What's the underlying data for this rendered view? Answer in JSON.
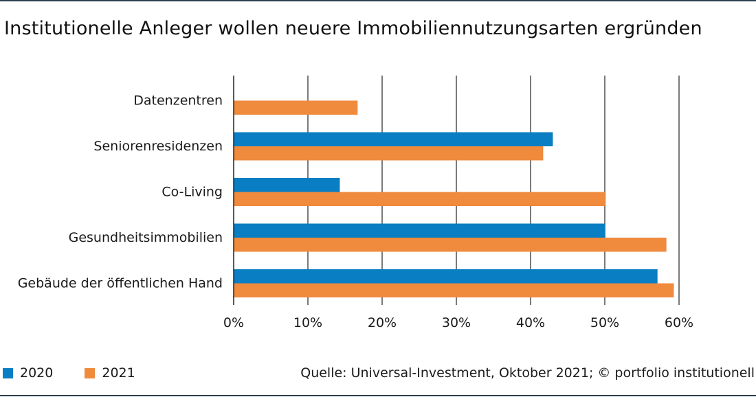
{
  "title": "Institutionelle Anleger wollen neuere Immobiliennutzungsarten ergründen",
  "source": "Quelle: Universal-Investment, Oktober 2021; © portfolio institutionell",
  "colors": {
    "2020": "#0a7ec2",
    "2021": "#f08a3c"
  },
  "chart_data": {
    "type": "bar",
    "orientation": "horizontal",
    "categories": [
      "Datenzentren",
      "Seniorenresidenzen",
      "Co-Living",
      "Gesundheitsimmobilien",
      "Gebäude der öffentlichen Hand"
    ],
    "series": [
      {
        "name": "2020",
        "values": [
          null,
          43,
          14.3,
          50,
          57.1
        ]
      },
      {
        "name": "2021",
        "values": [
          16.7,
          41.7,
          50,
          58.3,
          59.3
        ]
      }
    ],
    "xlim": [
      0,
      60
    ],
    "xticks": [
      "0%",
      "10%",
      "20%",
      "30%",
      "40%",
      "50%",
      "60%"
    ],
    "xtick_values": [
      0,
      10,
      20,
      30,
      40,
      50,
      60
    ],
    "grid": true,
    "legend_position": "bottom-left"
  }
}
